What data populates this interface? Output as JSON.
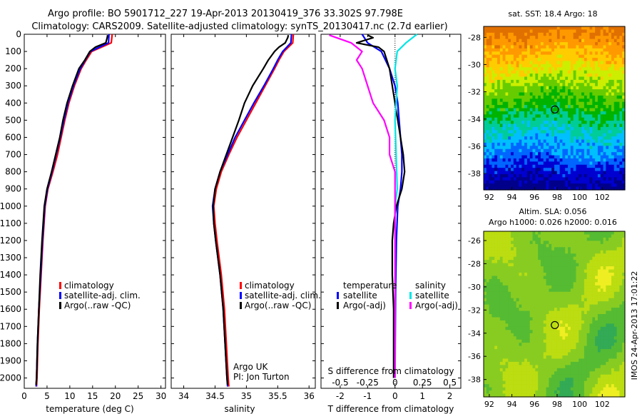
{
  "header": {
    "line1": "Argo profile: BO 5901712_227 19-Apr-2013 20130419_376 33.302S 97.798E",
    "line2": "Climatology: CARS2009. Satellite-adjusted climatology: synTS_20130417.nc (2.7d earlier)"
  },
  "footer": {
    "vertical_text": "IMOS 24-Apr-2013 17:01:22"
  },
  "colors": {
    "climatology": "#ff0000",
    "satellite": "#0000ff",
    "argo": "#000000",
    "sal_satellite": "#00e5e5",
    "sal_argo": "#ff00ff"
  },
  "chart_data": [
    {
      "id": "temperature",
      "type": "line",
      "xlabel": "temperature (deg C)",
      "ylabel": "",
      "xlim": [
        0,
        31
      ],
      "ylim": [
        2060,
        0
      ],
      "xticks": [
        0,
        5,
        10,
        15,
        20,
        25,
        30
      ],
      "yticks": [
        0,
        100,
        200,
        300,
        400,
        500,
        600,
        700,
        800,
        900,
        1000,
        1100,
        1200,
        1300,
        1400,
        1500,
        1600,
        1700,
        1800,
        1900,
        2000
      ],
      "legend": [
        "climatology",
        "satellite-adj. clim.",
        "Argo(..raw -QC)"
      ],
      "legend_position": "bottom-left",
      "series": [
        {
          "name": "climatology",
          "color": "#ff0000",
          "depth": [
            0,
            50,
            100,
            150,
            200,
            300,
            400,
            500,
            600,
            700,
            800,
            900,
            1000,
            1200,
            1400,
            1600,
            1800,
            2000,
            2050
          ],
          "values": [
            19.3,
            19.1,
            14.8,
            13.6,
            12.5,
            11.0,
            9.8,
            8.9,
            8.1,
            7.3,
            6.3,
            5.2,
            4.6,
            4.1,
            3.7,
            3.3,
            3.0,
            2.8,
            2.7
          ]
        },
        {
          "name": "satellite-adj. clim.",
          "color": "#0000ff",
          "depth": [
            0,
            50,
            100,
            150,
            200,
            300,
            400,
            500,
            600,
            700,
            800,
            900,
            1000,
            1200,
            1400,
            1600,
            1800,
            2000,
            2050
          ],
          "values": [
            18.6,
            18.5,
            14.5,
            13.4,
            12.3,
            10.8,
            9.6,
            8.7,
            7.9,
            7.0,
            6.1,
            5.1,
            4.5,
            4.0,
            3.6,
            3.2,
            2.9,
            2.7,
            2.6
          ]
        },
        {
          "name": "Argo(..raw -QC)",
          "color": "#000000",
          "depth": [
            5,
            20,
            50,
            75,
            100,
            150,
            200,
            300,
            400,
            500,
            600,
            700,
            800,
            900,
            1000,
            1200,
            1400,
            1600,
            1800,
            2000,
            2040
          ],
          "values": [
            18.3,
            18.2,
            17.9,
            15.6,
            14.4,
            13.3,
            12.0,
            10.6,
            9.4,
            8.5,
            7.8,
            6.9,
            6.0,
            5.0,
            4.4,
            3.9,
            3.5,
            3.2,
            2.9,
            2.7,
            2.6
          ]
        }
      ]
    },
    {
      "id": "salinity",
      "type": "line",
      "xlabel": "salinity",
      "ylabel": "",
      "xlim": [
        33.8,
        36.1
      ],
      "ylim": [
        2060,
        0
      ],
      "xticks": [
        34,
        34.5,
        35,
        35.5,
        36
      ],
      "legend": [
        "climatology",
        "satellite-adj. clim.",
        "Argo(..raw -QC)"
      ],
      "legend_position": "bottom-right",
      "annotation": [
        "Argo UK",
        "PI: Jon Turton"
      ],
      "series": [
        {
          "name": "climatology",
          "color": "#ff0000",
          "depth": [
            0,
            50,
            100,
            150,
            200,
            300,
            400,
            500,
            600,
            700,
            800,
            900,
            1000,
            1100,
            1200,
            1400,
            1600,
            1800,
            2000,
            2050
          ],
          "values": [
            35.75,
            35.74,
            35.6,
            35.52,
            35.45,
            35.3,
            35.15,
            35.0,
            34.85,
            34.72,
            34.6,
            34.52,
            34.48,
            34.5,
            34.53,
            34.6,
            34.65,
            34.68,
            34.71,
            34.72
          ]
        },
        {
          "name": "satellite-adj. clim.",
          "color": "#0000ff",
          "depth": [
            0,
            50,
            100,
            150,
            200,
            300,
            400,
            500,
            600,
            700,
            800,
            900,
            1000,
            1100,
            1200,
            1400,
            1600,
            1800,
            2000,
            2050
          ],
          "values": [
            35.72,
            35.71,
            35.58,
            35.5,
            35.43,
            35.28,
            35.12,
            34.97,
            34.82,
            34.7,
            34.58,
            34.5,
            34.46,
            34.48,
            34.51,
            34.58,
            34.63,
            34.66,
            34.69,
            34.7
          ]
        },
        {
          "name": "Argo(..raw -QC)",
          "color": "#000000",
          "depth": [
            5,
            20,
            50,
            75,
            100,
            150,
            200,
            300,
            400,
            500,
            600,
            700,
            800,
            900,
            1000,
            1100,
            1200,
            1400,
            1600,
            1800,
            2000,
            2040
          ],
          "values": [
            35.67,
            35.66,
            35.62,
            35.52,
            35.45,
            35.35,
            35.27,
            35.1,
            34.97,
            34.88,
            34.78,
            34.68,
            34.58,
            34.5,
            34.47,
            34.48,
            34.51,
            34.58,
            34.63,
            34.66,
            34.69,
            34.7
          ]
        }
      ]
    },
    {
      "id": "difference",
      "type": "line",
      "xlabel": "T difference from climatology",
      "xlabel_top": "S difference from climatology",
      "xlim": [
        -2.7,
        2.4
      ],
      "ylim": [
        2060,
        0
      ],
      "xticks": [
        -2,
        -1,
        0,
        1,
        2
      ],
      "xtick_labels": [
        "-2",
        "-1",
        "0",
        "1",
        "2"
      ],
      "s_ticks": [
        -0.5,
        -0.25,
        0,
        0.25,
        0.5
      ],
      "s_tick_labels": [
        "-0.5",
        "-0.25",
        "0",
        "0.25",
        "0.5"
      ],
      "legend_temperature_title": "temperature",
      "legend_salinity_title": "salinity",
      "legend_temperature": [
        "satellite",
        "Argo(-adj)"
      ],
      "legend_salinity": [
        "satellite",
        "Argo(-adj)"
      ],
      "series": [
        {
          "name": "T satellite",
          "color": "#0000ff",
          "depth": [
            0,
            50,
            100,
            200,
            300,
            400,
            500,
            600,
            700,
            800,
            900,
            1000,
            1200,
            1500,
            2000
          ],
          "values": [
            -1.2,
            -1.0,
            -0.5,
            -0.2,
            0.0,
            0.1,
            0.15,
            0.2,
            0.25,
            0.25,
            0.2,
            0.1,
            0.05,
            0.02,
            0.0
          ]
        },
        {
          "name": "T Argo(-adj)",
          "color": "#000000",
          "depth": [
            5,
            20,
            50,
            75,
            100,
            150,
            200,
            300,
            400,
            500,
            600,
            700,
            800,
            900,
            1000,
            1100,
            1200,
            1400,
            1600,
            1800,
            2000
          ],
          "values": [
            -1.0,
            -0.8,
            -1.4,
            -0.6,
            -0.4,
            -0.3,
            -0.2,
            -0.1,
            0.0,
            0.1,
            0.2,
            0.3,
            0.35,
            0.25,
            0.05,
            -0.05,
            -0.1,
            -0.1,
            -0.05,
            -0.05,
            -0.05
          ]
        },
        {
          "name": "S satellite",
          "color": "#00e5e5",
          "depth": [
            0,
            50,
            100,
            200,
            300,
            500,
            700,
            900,
            1000,
            1200,
            1500,
            2000
          ],
          "values": [
            0.2,
            0.1,
            0.02,
            0.0,
            0.02,
            0.0,
            0.01,
            0.02,
            0.0,
            0.0,
            0.0,
            0.0
          ]
        },
        {
          "name": "S Argo(-adj)",
          "color": "#ff00ff",
          "depth": [
            5,
            50,
            100,
            150,
            200,
            300,
            400,
            500,
            600,
            700,
            800,
            900,
            1000,
            1100,
            1200,
            1400,
            1600,
            1800,
            2000
          ],
          "values": [
            -0.6,
            -0.4,
            -0.3,
            -0.35,
            -0.3,
            -0.25,
            -0.2,
            -0.1,
            -0.05,
            -0.05,
            0.0,
            0.0,
            0.0,
            0.0,
            0.0,
            0.0,
            0.0,
            0.0,
            0.0
          ]
        }
      ]
    },
    {
      "id": "sst_map",
      "type": "heatmap",
      "title": "sat. SST: 18.4 Argo: 18",
      "xticks": [
        92,
        94,
        96,
        98,
        100,
        102
      ],
      "yticks": [
        -28,
        -30,
        -32,
        -34,
        -36,
        -38
      ],
      "xlim": [
        91.5,
        104
      ],
      "ylim": [
        -39.2,
        -27.2
      ],
      "marker": [
        97.8,
        -33.3
      ],
      "palette": [
        "#00008b",
        "#0000d0",
        "#0066ff",
        "#00bfff",
        "#00cc99",
        "#00b300",
        "#66cc00",
        "#ccee00",
        "#ffcc00",
        "#ff9900",
        "#e07000"
      ]
    },
    {
      "id": "sla_map",
      "type": "heatmap",
      "title": "Altim. SLA: 0.056",
      "subtitle": "Argo h1000: 0.026 h2000: 0.016",
      "xticks": [
        92,
        94,
        96,
        98,
        100,
        102
      ],
      "yticks": [
        -26,
        -28,
        -30,
        -32,
        -34,
        -36,
        -38
      ],
      "xlim": [
        91.5,
        104
      ],
      "ylim": [
        -39.5,
        -25.2
      ],
      "marker": [
        97.8,
        -33.3
      ],
      "palette": [
        "#33aa55",
        "#55bb33",
        "#88cc22",
        "#bbdd11",
        "#eeee22"
      ]
    }
  ]
}
